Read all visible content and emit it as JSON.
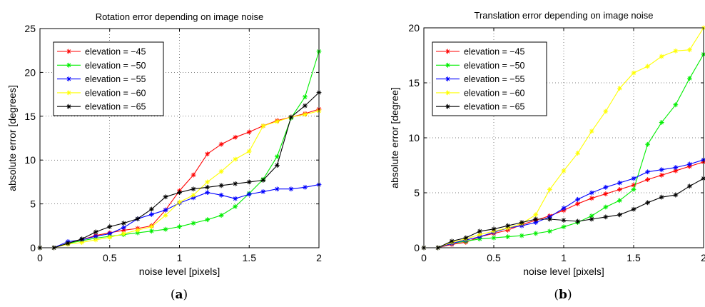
{
  "chart_data": [
    {
      "type": "line",
      "title": "Rotation error depending on image noise",
      "xlabel": "noise level [pixels]",
      "ylabel": "absolute error [degrees]",
      "xlim": [
        0,
        2
      ],
      "ylim": [
        0,
        25
      ],
      "x_ticks": [
        "0",
        "0.5",
        "1",
        "1.5",
        "2"
      ],
      "y_ticks": [
        "0",
        "5",
        "10",
        "15",
        "20",
        "25"
      ],
      "grid": true,
      "legend_position": "top-left",
      "x": [
        0,
        0.1,
        0.2,
        0.3,
        0.4,
        0.5,
        0.6,
        0.7,
        0.8,
        0.9,
        1.0,
        1.1,
        1.2,
        1.3,
        1.4,
        1.5,
        1.6,
        1.7,
        1.8,
        1.9,
        2.0
      ],
      "series": [
        {
          "name": "elevation = −45",
          "color": "#ff0000",
          "values": [
            0,
            0,
            0.5,
            0.9,
            1.4,
            1.7,
            2.0,
            2.2,
            2.5,
            4.3,
            6.5,
            8.3,
            10.7,
            11.8,
            12.6,
            13.2,
            13.9,
            14.5,
            14.9,
            15.3,
            15.8
          ]
        },
        {
          "name": "elevation = −50",
          "color": "#00ee00",
          "values": [
            0,
            0,
            0.5,
            0.8,
            1.1,
            1.3,
            1.5,
            1.7,
            1.9,
            2.1,
            2.4,
            2.8,
            3.2,
            3.7,
            4.7,
            6.2,
            7.8,
            10.4,
            14.8,
            17.2,
            22.4
          ]
        },
        {
          "name": "elevation = −55",
          "color": "#0000ff",
          "values": [
            0,
            0,
            0.7,
            0.9,
            1.3,
            1.6,
            2.3,
            3.3,
            3.8,
            4.3,
            5.1,
            5.7,
            6.3,
            6.0,
            5.6,
            6.1,
            6.4,
            6.7,
            6.7,
            6.9,
            7.2
          ]
        },
        {
          "name": "elevation = −60",
          "color": "#ffff00",
          "values": [
            0,
            0,
            0.4,
            0.6,
            0.9,
            1.2,
            1.6,
            2.0,
            2.4,
            3.7,
            5.2,
            6.0,
            7.5,
            8.7,
            10.1,
            11.0,
            13.9,
            14.4,
            14.9,
            15.2,
            15.6
          ]
        },
        {
          "name": "elevation = −65",
          "color": "#000000",
          "values": [
            0,
            0,
            0.5,
            1.0,
            1.8,
            2.4,
            2.8,
            3.3,
            4.4,
            5.8,
            6.3,
            6.7,
            6.9,
            7.1,
            7.3,
            7.5,
            7.7,
            9.4,
            14.9,
            16.2,
            17.7
          ]
        }
      ]
    },
    {
      "type": "line",
      "title": "Translation error depending on image noise",
      "xlabel": "noise level [pixels]",
      "ylabel": "absolute error [degree]",
      "xlim": [
        0,
        2
      ],
      "ylim": [
        0,
        20
      ],
      "x_ticks": [
        "0",
        "0.5",
        "1",
        "1.5",
        "2"
      ],
      "y_ticks": [
        "0",
        "5",
        "10",
        "15",
        "20"
      ],
      "grid": true,
      "legend_position": "top-left",
      "x": [
        0,
        0.1,
        0.2,
        0.3,
        0.4,
        0.5,
        0.6,
        0.7,
        0.8,
        0.9,
        1.0,
        1.1,
        1.2,
        1.3,
        1.4,
        1.5,
        1.6,
        1.7,
        1.8,
        1.9,
        2.0
      ],
      "series": [
        {
          "name": "elevation = −45",
          "color": "#ff0000",
          "values": [
            0,
            0,
            0.3,
            0.5,
            1.0,
            1.3,
            1.6,
            2.1,
            2.5,
            2.9,
            3.4,
            4.0,
            4.5,
            4.9,
            5.3,
            5.7,
            6.2,
            6.6,
            7.0,
            7.4,
            7.8
          ]
        },
        {
          "name": "elevation = −50",
          "color": "#00ee00",
          "values": [
            0,
            0,
            0.4,
            0.6,
            0.8,
            0.9,
            1.0,
            1.1,
            1.3,
            1.5,
            1.9,
            2.3,
            2.9,
            3.7,
            4.3,
            5.3,
            9.4,
            11.4,
            13.0,
            15.4,
            17.6
          ]
        },
        {
          "name": "elevation = −55",
          "color": "#0000ff",
          "values": [
            0,
            0,
            0.4,
            0.7,
            1.0,
            1.4,
            1.8,
            2.0,
            2.3,
            2.8,
            3.6,
            4.4,
            5.0,
            5.5,
            5.9,
            6.3,
            6.9,
            7.1,
            7.3,
            7.6,
            8.0
          ]
        },
        {
          "name": "elevation = −60",
          "color": "#ffff00",
          "values": [
            0,
            0,
            0.5,
            0.8,
            1.2,
            1.5,
            1.8,
            2.2,
            3.0,
            5.3,
            7.0,
            8.6,
            10.6,
            12.4,
            14.5,
            15.9,
            16.5,
            17.4,
            17.9,
            18.0,
            20.0
          ]
        },
        {
          "name": "elevation = −65",
          "color": "#000000",
          "values": [
            0,
            0,
            0.6,
            0.9,
            1.5,
            1.7,
            2.0,
            2.3,
            2.6,
            2.6,
            2.5,
            2.4,
            2.6,
            2.8,
            3.0,
            3.5,
            4.1,
            4.6,
            4.8,
            5.6,
            6.3
          ]
        }
      ]
    }
  ],
  "subfigure_labels": {
    "a": {
      "open": "(",
      "letter": "a",
      "close": ")"
    },
    "b": {
      "open": "(",
      "letter": "b",
      "close": ")"
    }
  }
}
